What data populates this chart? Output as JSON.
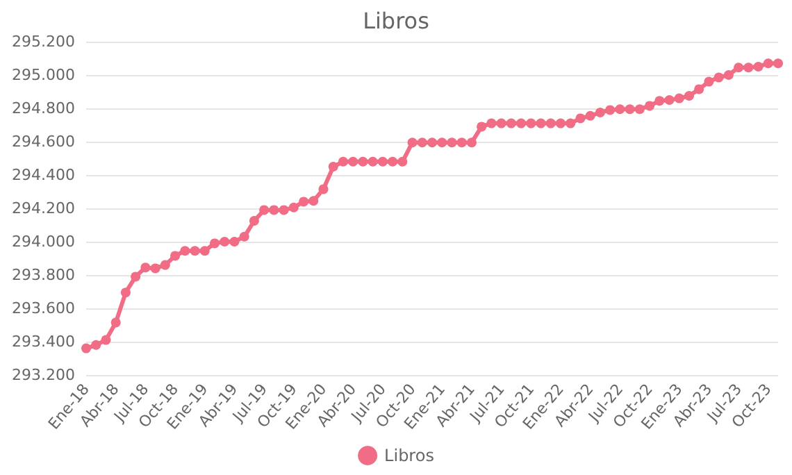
{
  "chart_data": {
    "type": "line",
    "title": "Libros",
    "categories": [
      "Ene-18",
      null,
      null,
      "Abr-18",
      null,
      null,
      "Jul-18",
      null,
      null,
      "Oct-18",
      null,
      null,
      "Ene-19",
      null,
      null,
      "Abr-19",
      null,
      null,
      "Jul-19",
      null,
      null,
      "Oct-19",
      null,
      null,
      "Ene-20",
      null,
      null,
      "Abr-20",
      null,
      null,
      "Jul-20",
      null,
      null,
      "Oct-20",
      null,
      null,
      "Ene-21",
      null,
      null,
      "Abr-21",
      null,
      null,
      "Jul-21",
      null,
      null,
      "Oct-21",
      null,
      null,
      "Ene-22",
      null,
      null,
      "Abr-22",
      null,
      null,
      "Jul-22",
      null,
      null,
      "Oct-22",
      null,
      null,
      "Ene-23",
      null,
      null,
      "Abr-23",
      null,
      null,
      "Jul-23",
      null,
      null,
      "Oct-23",
      null
    ],
    "series": [
      {
        "name": "Libros",
        "color": "#f06d85",
        "values": [
          293360,
          293380,
          293410,
          293515,
          293695,
          293790,
          293845,
          293840,
          293860,
          293915,
          293945,
          293945,
          293945,
          293990,
          294000,
          294000,
          294030,
          294125,
          294190,
          294190,
          294190,
          294205,
          294240,
          294245,
          294315,
          294450,
          294480,
          294480,
          294480,
          294480,
          294480,
          294480,
          294480,
          294595,
          294595,
          294595,
          294595,
          294595,
          294595,
          294595,
          294690,
          294710,
          294710,
          294710,
          294710,
          294710,
          294710,
          294710,
          294710,
          294710,
          294740,
          294755,
          294775,
          294790,
          294795,
          294795,
          294795,
          294815,
          294845,
          294850,
          294860,
          294875,
          294915,
          294960,
          294985,
          295000,
          295045,
          295045,
          295050,
          295070,
          295070
        ]
      }
    ],
    "ylim": [
      293200,
      295200
    ],
    "yticks": [
      {
        "value": 293200,
        "label": "293.200"
      },
      {
        "value": 293400,
        "label": "293.400"
      },
      {
        "value": 293600,
        "label": "293.600"
      },
      {
        "value": 293800,
        "label": "293.800"
      },
      {
        "value": 294000,
        "label": "294.000"
      },
      {
        "value": 294200,
        "label": "294.200"
      },
      {
        "value": 294400,
        "label": "294.400"
      },
      {
        "value": 294600,
        "label": "294.600"
      },
      {
        "value": 294800,
        "label": "294.800"
      },
      {
        "value": 295000,
        "label": "295.000"
      },
      {
        "value": 295200,
        "label": "295.200"
      }
    ],
    "grid": "y",
    "legend": "bottom",
    "marker": "circle",
    "line_style": "solid"
  }
}
